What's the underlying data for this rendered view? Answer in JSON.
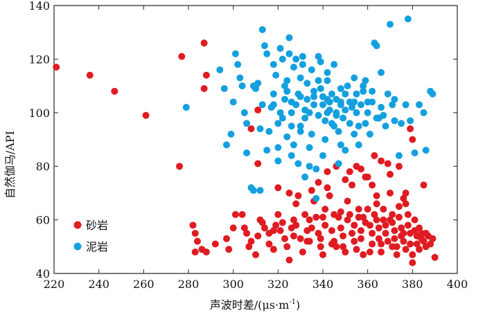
{
  "chart_data": {
    "type": "scatter",
    "title": "",
    "xlabel": "声波时差/(μs·m",
    "xlabel_sup": "-1",
    "xlabel_close": ")",
    "ylabel": "自然伽马/API",
    "xlim": [
      220,
      400
    ],
    "ylim": [
      40,
      140
    ],
    "xticks": [
      220,
      240,
      260,
      280,
      300,
      320,
      340,
      360,
      380,
      400
    ],
    "yticks": [
      40,
      60,
      80,
      100,
      120,
      140
    ],
    "legend_position": "bottom-left",
    "series": [
      {
        "name": "砂岩",
        "color": "#e01b22",
        "points": [
          [
            221,
            117
          ],
          [
            236,
            114
          ],
          [
            247,
            108
          ],
          [
            261,
            99
          ],
          [
            276,
            80
          ],
          [
            277,
            121
          ],
          [
            287,
            126
          ],
          [
            287,
            109
          ],
          [
            288,
            114
          ],
          [
            311,
            101
          ],
          [
            308,
            94
          ],
          [
            311,
            81
          ],
          [
            379,
            94
          ],
          [
            380,
            90
          ],
          [
            282,
            58
          ],
          [
            283,
            55
          ],
          [
            284,
            52
          ],
          [
            283,
            48
          ],
          [
            286,
            49
          ],
          [
            288,
            48
          ],
          [
            292,
            51
          ],
          [
            297,
            53
          ],
          [
            298,
            49
          ],
          [
            300,
            57
          ],
          [
            301,
            62
          ],
          [
            304,
            62
          ],
          [
            305,
            57
          ],
          [
            306,
            55
          ],
          [
            307,
            50
          ],
          [
            308,
            52
          ],
          [
            310,
            47
          ],
          [
            311,
            54
          ],
          [
            312,
            60
          ],
          [
            313,
            59
          ],
          [
            314,
            57
          ],
          [
            316,
            55
          ],
          [
            316,
            51
          ],
          [
            318,
            49
          ],
          [
            319,
            58
          ],
          [
            320,
            62
          ],
          [
            321,
            56
          ],
          [
            323,
            53
          ],
          [
            324,
            50
          ],
          [
            325,
            45
          ],
          [
            326,
            57
          ],
          [
            327,
            60
          ],
          [
            328,
            66
          ],
          [
            329,
            69
          ],
          [
            330,
            53
          ],
          [
            331,
            48
          ],
          [
            332,
            62
          ],
          [
            333,
            56
          ],
          [
            334,
            52
          ],
          [
            335,
            57
          ],
          [
            336,
            67
          ],
          [
            337,
            61
          ],
          [
            338,
            55
          ],
          [
            339,
            50
          ],
          [
            340,
            47
          ],
          [
            341,
            58
          ],
          [
            341,
            64
          ],
          [
            342,
            72
          ],
          [
            343,
            69
          ],
          [
            344,
            56
          ],
          [
            345,
            52
          ],
          [
            346,
            50
          ],
          [
            347,
            61
          ],
          [
            348,
            57
          ],
          [
            348,
            63
          ],
          [
            349,
            54
          ],
          [
            350,
            48
          ],
          [
            351,
            67
          ],
          [
            351,
            60
          ],
          [
            352,
            78
          ],
          [
            353,
            55
          ],
          [
            354,
            52
          ],
          [
            354,
            58
          ],
          [
            355,
            80
          ],
          [
            356,
            64
          ],
          [
            356,
            61
          ],
          [
            357,
            56
          ],
          [
            357,
            53
          ],
          [
            358,
            47
          ],
          [
            359,
            59
          ],
          [
            360,
            64
          ],
          [
            360,
            76
          ],
          [
            361,
            58
          ],
          [
            362,
            55
          ],
          [
            362,
            51
          ],
          [
            363,
            62
          ],
          [
            363,
            84
          ],
          [
            364,
            69
          ],
          [
            364,
            66
          ],
          [
            365,
            57
          ],
          [
            365,
            53
          ],
          [
            366,
            48
          ],
          [
            367,
            60
          ],
          [
            367,
            64
          ],
          [
            368,
            58
          ],
          [
            368,
            55
          ],
          [
            369,
            52
          ],
          [
            369,
            81
          ],
          [
            370,
            70
          ],
          [
            371,
            62
          ],
          [
            371,
            59
          ],
          [
            372,
            56
          ],
          [
            372,
            53
          ],
          [
            373,
            50
          ],
          [
            373,
            47
          ],
          [
            374,
            61
          ],
          [
            374,
            65
          ],
          [
            375,
            57
          ],
          [
            375,
            54
          ],
          [
            376,
            68
          ],
          [
            376,
            52
          ],
          [
            377,
            49
          ],
          [
            377,
            66
          ],
          [
            378,
            58
          ],
          [
            378,
            62
          ],
          [
            379,
            55
          ],
          [
            379,
            51
          ],
          [
            380,
            47
          ],
          [
            380,
            44
          ],
          [
            381,
            60
          ],
          [
            381,
            56
          ],
          [
            382,
            54
          ],
          [
            382,
            51
          ],
          [
            383,
            49
          ],
          [
            383,
            57
          ],
          [
            384,
            53
          ],
          [
            384,
            55
          ],
          [
            385,
            52
          ],
          [
            385,
            73
          ],
          [
            386,
            50
          ],
          [
            386,
            55
          ],
          [
            387,
            54
          ],
          [
            388,
            51
          ],
          [
            389,
            53
          ],
          [
            390,
            46
          ],
          [
            320,
            72
          ],
          [
            325,
            70
          ],
          [
            335,
            71
          ],
          [
            338,
            74
          ],
          [
            342,
            78
          ],
          [
            346,
            80
          ],
          [
            350,
            75
          ],
          [
            353,
            73
          ],
          [
            357,
            79
          ],
          [
            359,
            76
          ],
          [
            362,
            73
          ],
          [
            366,
            82
          ],
          [
            370,
            77
          ],
          [
            374,
            80
          ],
          [
            377,
            70
          ],
          [
            345,
            62
          ],
          [
            352,
            62
          ],
          [
            358,
            61
          ],
          [
            364,
            60
          ],
          [
            370,
            60
          ],
          [
            327,
            54
          ],
          [
            333,
            52
          ],
          [
            339,
            53
          ],
          [
            344,
            51
          ],
          [
            349,
            50
          ],
          [
            355,
            49
          ],
          [
            361,
            48
          ],
          [
            366,
            51
          ],
          [
            371,
            50
          ],
          [
            376,
            55
          ],
          [
            318,
            56
          ],
          [
            322,
            59
          ],
          [
            328,
            58
          ],
          [
            334,
            60
          ],
          [
            340,
            61
          ]
        ]
      },
      {
        "name": "泥岩",
        "color": "#14a0de",
        "points": [
          [
            279,
            102
          ],
          [
            294,
            116
          ],
          [
            296,
            109
          ],
          [
            297,
            88
          ],
          [
            299,
            92
          ],
          [
            300,
            104
          ],
          [
            301,
            122
          ],
          [
            302,
            118
          ],
          [
            303,
            113
          ],
          [
            304,
            110
          ],
          [
            305,
            100
          ],
          [
            306,
            85
          ],
          [
            308,
            72
          ],
          [
            309,
            71
          ],
          [
            310,
            109
          ],
          [
            311,
            111
          ],
          [
            312,
            71
          ],
          [
            313,
            103
          ],
          [
            313,
            131
          ],
          [
            314,
            125
          ],
          [
            315,
            86
          ],
          [
            316,
            93
          ],
          [
            317,
            102
          ],
          [
            318,
            107
          ],
          [
            319,
            114
          ],
          [
            320,
            96
          ],
          [
            320,
            87
          ],
          [
            321,
            100
          ],
          [
            321,
            124
          ],
          [
            322,
            120
          ],
          [
            323,
            105
          ],
          [
            323,
            110
          ],
          [
            324,
            112
          ],
          [
            324,
            91
          ],
          [
            325,
            122
          ],
          [
            325,
            128
          ],
          [
            326,
            100
          ],
          [
            326,
            104
          ],
          [
            327,
            88
          ],
          [
            327,
            117
          ],
          [
            328,
            120
          ],
          [
            328,
            103
          ],
          [
            329,
            107
          ],
          [
            329,
            81
          ],
          [
            330,
            95
          ],
          [
            330,
            113
          ],
          [
            331,
            118
          ],
          [
            331,
            121
          ],
          [
            332,
            101
          ],
          [
            332,
            98
          ],
          [
            333,
            105
          ],
          [
            333,
            111
          ],
          [
            334,
            80
          ],
          [
            334,
            87
          ],
          [
            335,
            92
          ],
          [
            335,
            116
          ],
          [
            336,
            108
          ],
          [
            336,
            103
          ],
          [
            337,
            79
          ],
          [
            337,
            68
          ],
          [
            338,
            99
          ],
          [
            338,
            121
          ],
          [
            339,
            119
          ],
          [
            339,
            109
          ],
          [
            340,
            106
          ],
          [
            340,
            103
          ],
          [
            341,
            97
          ],
          [
            341,
            90
          ],
          [
            342,
            115
          ],
          [
            342,
            112
          ],
          [
            343,
            104
          ],
          [
            343,
            101
          ],
          [
            344,
            107
          ],
          [
            344,
            96
          ],
          [
            345,
            118
          ],
          [
            345,
            95
          ],
          [
            346,
            100
          ],
          [
            346,
            105
          ],
          [
            347,
            93
          ],
          [
            347,
            81
          ],
          [
            348,
            103
          ],
          [
            348,
            109
          ],
          [
            349,
            98
          ],
          [
            350,
            101
          ],
          [
            350,
            86
          ],
          [
            351,
            110
          ],
          [
            352,
            104
          ],
          [
            352,
            96
          ],
          [
            353,
            102
          ],
          [
            354,
            113
          ],
          [
            355,
            107
          ],
          [
            355,
            100
          ],
          [
            356,
            95
          ],
          [
            357,
            103
          ],
          [
            358,
            108
          ],
          [
            359,
            112
          ],
          [
            359,
            96
          ],
          [
            360,
            100
          ],
          [
            361,
            92
          ],
          [
            362,
            104
          ],
          [
            363,
            126
          ],
          [
            364,
            125
          ],
          [
            365,
            98
          ],
          [
            366,
            115
          ],
          [
            367,
            99
          ],
          [
            368,
            95
          ],
          [
            369,
            107
          ],
          [
            370,
            133
          ],
          [
            371,
            103
          ],
          [
            372,
            105
          ],
          [
            374,
            84
          ],
          [
            375,
            96
          ],
          [
            377,
            103
          ],
          [
            378,
            135
          ],
          [
            379,
            97
          ],
          [
            381,
            85
          ],
          [
            383,
            103
          ],
          [
            385,
            100
          ],
          [
            386,
            86
          ],
          [
            388,
            108
          ],
          [
            389,
            107
          ],
          [
            306,
            96
          ],
          [
            309,
            110
          ],
          [
            315,
            122
          ],
          [
            318,
            118
          ],
          [
            322,
            98
          ],
          [
            326,
            95
          ],
          [
            330,
            93
          ],
          [
            334,
            100
          ],
          [
            338,
            112
          ],
          [
            342,
            105
          ],
          [
            346,
            99
          ],
          [
            350,
            107
          ],
          [
            354,
            92
          ],
          [
            358,
            110
          ],
          [
            362,
            108
          ],
          [
            318,
            103
          ],
          [
            324,
            108
          ],
          [
            330,
            106
          ],
          [
            336,
            106
          ],
          [
            342,
            100
          ],
          [
            348,
            104
          ],
          [
            354,
            104
          ],
          [
            360,
            104
          ],
          [
            366,
            102
          ],
          [
            372,
            97
          ],
          [
            312,
            94
          ],
          [
            320,
            82
          ],
          [
            326,
            84
          ],
          [
            332,
            76
          ],
          [
            340,
            84
          ],
          [
            348,
            88
          ],
          [
            356,
            88
          ],
          [
            364,
            98
          ]
        ]
      }
    ]
  }
}
